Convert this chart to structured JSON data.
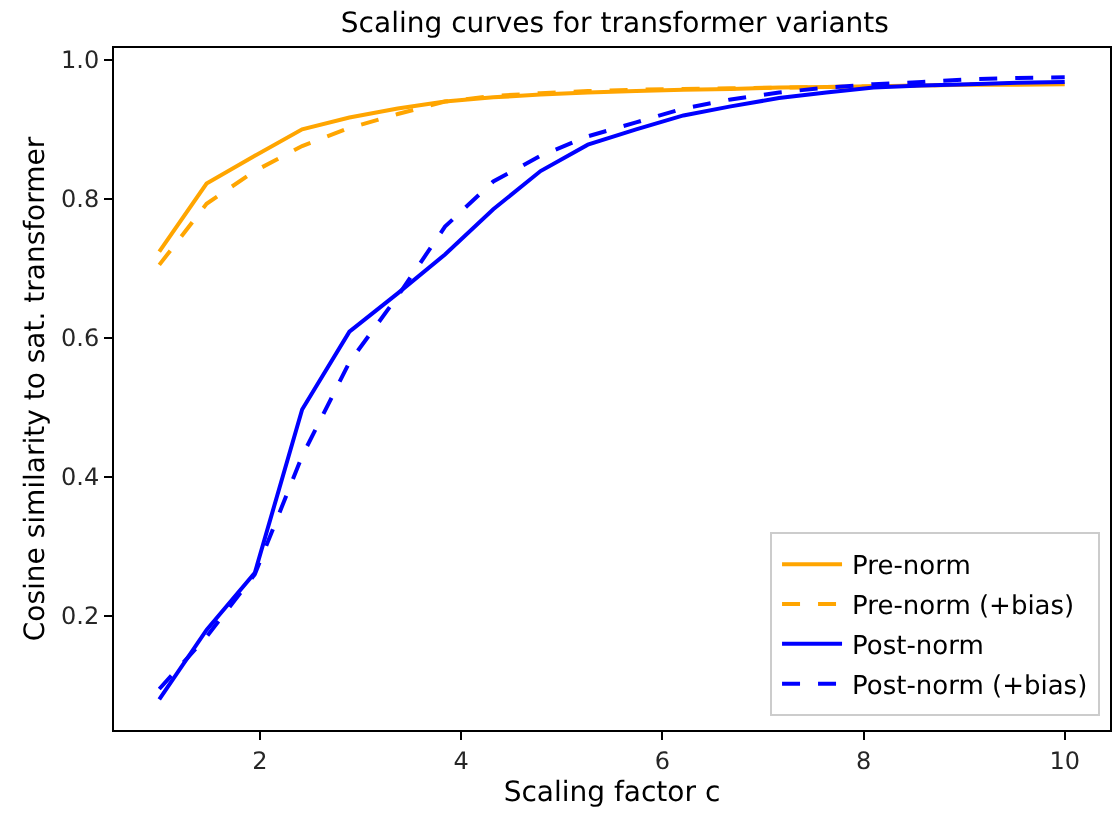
{
  "chart_data": {
    "type": "line",
    "title": "Scaling curves for transformer variants",
    "xlabel": "Scaling factor c",
    "ylabel": "Cosine similarity to sat. transformer",
    "x": [
      1.0,
      1.47,
      1.95,
      2.42,
      2.89,
      3.37,
      3.84,
      4.32,
      4.79,
      5.26,
      5.74,
      6.21,
      6.68,
      7.16,
      7.63,
      8.1,
      8.58,
      9.05,
      9.53,
      10.0
    ],
    "xlim": [
      0.55,
      10.45
    ],
    "xticks": [
      2,
      4,
      6,
      8,
      10
    ],
    "ylim": [
      0.036,
      1.017
    ],
    "yticks": [
      {
        "value": 0.2,
        "label": "0.2"
      },
      {
        "value": 0.4,
        "label": "0.4"
      },
      {
        "value": 0.6,
        "label": "0.6"
      },
      {
        "value": 0.8,
        "label": "0.8"
      },
      {
        "value": 1.0,
        "label": "1.0"
      }
    ],
    "legend": "bottom right",
    "marker": "none",
    "series": [
      {
        "name": "Pre-norm",
        "color": "#ffa500",
        "line_style": "solid",
        "values": [
          0.724,
          0.822,
          0.862,
          0.9,
          0.917,
          0.93,
          0.94,
          0.946,
          0.95,
          0.953,
          0.955,
          0.957,
          0.958,
          0.96,
          0.961,
          0.962,
          0.963,
          0.964,
          0.964,
          0.965
        ]
      },
      {
        "name": "Pre-norm (+bias)",
        "color": "#ffa500",
        "line_style": "dashed",
        "values": [
          0.705,
          0.793,
          0.84,
          0.876,
          0.902,
          0.922,
          0.94,
          0.948,
          0.952,
          0.955,
          0.957,
          0.958,
          0.959,
          0.96,
          0.961,
          0.962,
          0.963,
          0.965,
          0.966,
          0.967
        ]
      },
      {
        "name": "Post-norm",
        "color": "#0000ff",
        "line_style": "solid",
        "values": [
          0.08,
          0.18,
          0.262,
          0.497,
          0.609,
          0.664,
          0.72,
          0.785,
          0.84,
          0.878,
          0.9,
          0.92,
          0.933,
          0.945,
          0.953,
          0.96,
          0.963,
          0.965,
          0.967,
          0.968
        ]
      },
      {
        "name": "Post-norm (+bias)",
        "color": "#0000ff",
        "line_style": "dashed",
        "values": [
          0.095,
          0.17,
          0.26,
          0.43,
          0.565,
          0.66,
          0.76,
          0.825,
          0.862,
          0.89,
          0.91,
          0.93,
          0.943,
          0.953,
          0.96,
          0.965,
          0.968,
          0.972,
          0.974,
          0.975
        ]
      }
    ]
  }
}
